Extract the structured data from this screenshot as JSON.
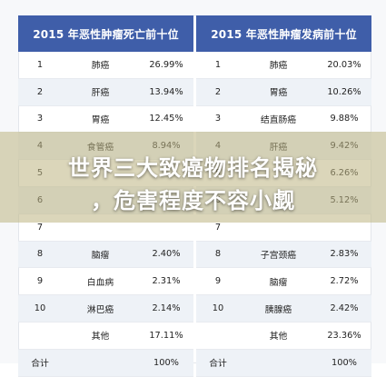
{
  "left_table": {
    "title": "2015 年恶性肿瘤死亡前十位",
    "rows": [
      {
        "rank": "1",
        "name": "肺癌",
        "pct": "26.99%"
      },
      {
        "rank": "2",
        "name": "肝癌",
        "pct": "13.94%"
      },
      {
        "rank": "3",
        "name": "胃癌",
        "pct": "12.45%"
      },
      {
        "rank": "4",
        "name": "食管癌",
        "pct": "8.94%"
      },
      {
        "rank": "5",
        "name": "",
        "pct": ""
      },
      {
        "rank": "6",
        "name": "",
        "pct": ""
      },
      {
        "rank": "7",
        "name": "",
        "pct": ""
      },
      {
        "rank": "8",
        "name": "脑瘤",
        "pct": "2.40%"
      },
      {
        "rank": "9",
        "name": "白血病",
        "pct": "2.31%"
      },
      {
        "rank": "10",
        "name": "淋巴癌",
        "pct": "2.14%"
      },
      {
        "rank": "",
        "name": "其他",
        "pct": "17.11%"
      },
      {
        "rank": "合计",
        "name": "",
        "pct": "100%"
      }
    ]
  },
  "right_table": {
    "title": "2015 年恶性肿瘤发病前十位",
    "rows": [
      {
        "rank": "1",
        "name": "肺癌",
        "pct": "20.03%"
      },
      {
        "rank": "2",
        "name": "胃癌",
        "pct": "10.26%"
      },
      {
        "rank": "3",
        "name": "结直肠癌",
        "pct": "9.88%"
      },
      {
        "rank": "4",
        "name": "肝癌",
        "pct": "9.42%"
      },
      {
        "rank": "5",
        "name": "",
        "pct": "6.26%"
      },
      {
        "rank": "6",
        "name": "",
        "pct": "5.12%"
      },
      {
        "rank": "7",
        "name": "",
        "pct": ""
      },
      {
        "rank": "8",
        "name": "子宫颈癌",
        "pct": "2.83%"
      },
      {
        "rank": "9",
        "name": "脑瘤",
        "pct": "2.72%"
      },
      {
        "rank": "10",
        "name": "胰腺癌",
        "pct": "2.42%"
      },
      {
        "rank": "",
        "name": "其他",
        "pct": "23.36%"
      },
      {
        "rank": "合计",
        "name": "",
        "pct": "100%"
      }
    ]
  },
  "overlay": {
    "line1": "世界三大致癌物排名揭秘",
    "line2": "，危害程度不容小觑"
  }
}
